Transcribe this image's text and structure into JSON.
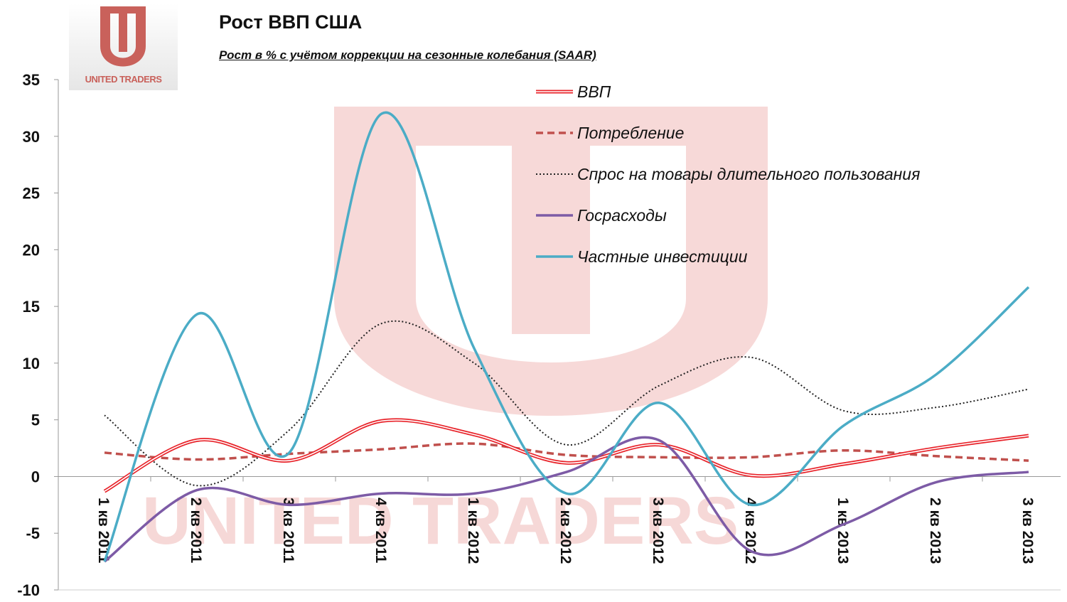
{
  "logo": {
    "text": "UNITED TRADERS"
  },
  "chart_data": {
    "type": "line",
    "title": "Рост ВВП США",
    "subtitle": "Рост в % с учётом коррекции на сезонные колебания (SAAR)",
    "xlabel": "",
    "ylabel": "",
    "ylim": [
      -10,
      35
    ],
    "yticks": [
      35,
      30,
      25,
      20,
      15,
      10,
      5,
      0,
      -5,
      -10
    ],
    "categories": [
      "1 кв 2011",
      "2 кв 2011",
      "3 кв 2011",
      "4 кв 2011",
      "1 кв 2012",
      "2 кв 2012",
      "3 кв 2012",
      "4 кв 2012",
      "1 кв 2013",
      "2 кв 2013",
      "3 кв 2013"
    ],
    "legend_position": "top-right",
    "smoothed": true,
    "series": [
      {
        "name": "ВВП",
        "color": "#e8232a",
        "style": "double",
        "values": [
          -1.3,
          3.2,
          1.4,
          4.9,
          3.7,
          1.2,
          2.8,
          0.1,
          1.1,
          2.5,
          3.6
        ]
      },
      {
        "name": "Потребление",
        "color": "#c0504d",
        "style": "dashed",
        "values": [
          2.1,
          1.5,
          2.0,
          2.4,
          2.9,
          1.9,
          1.7,
          1.7,
          2.3,
          1.8,
          1.4
        ]
      },
      {
        "name": "Спрос на товары длительного пользования",
        "color": "#222222",
        "style": "dotted",
        "values": [
          5.4,
          -0.8,
          4.1,
          13.5,
          10.0,
          2.8,
          8.0,
          10.5,
          5.8,
          6.1,
          7.7
        ]
      },
      {
        "name": "Госрасходы",
        "color": "#7d5ba6",
        "style": "solid",
        "values": [
          -7.5,
          -1.2,
          -2.5,
          -1.5,
          -1.5,
          0.4,
          3.2,
          -6.6,
          -4.2,
          -0.5,
          0.4
        ]
      },
      {
        "name": "Частные инвестиции",
        "color": "#4bacc6",
        "style": "solid",
        "values": [
          -7.5,
          14.3,
          2.1,
          32.0,
          11.3,
          -1.5,
          6.5,
          -2.5,
          4.5,
          9.0,
          16.7
        ]
      }
    ]
  }
}
